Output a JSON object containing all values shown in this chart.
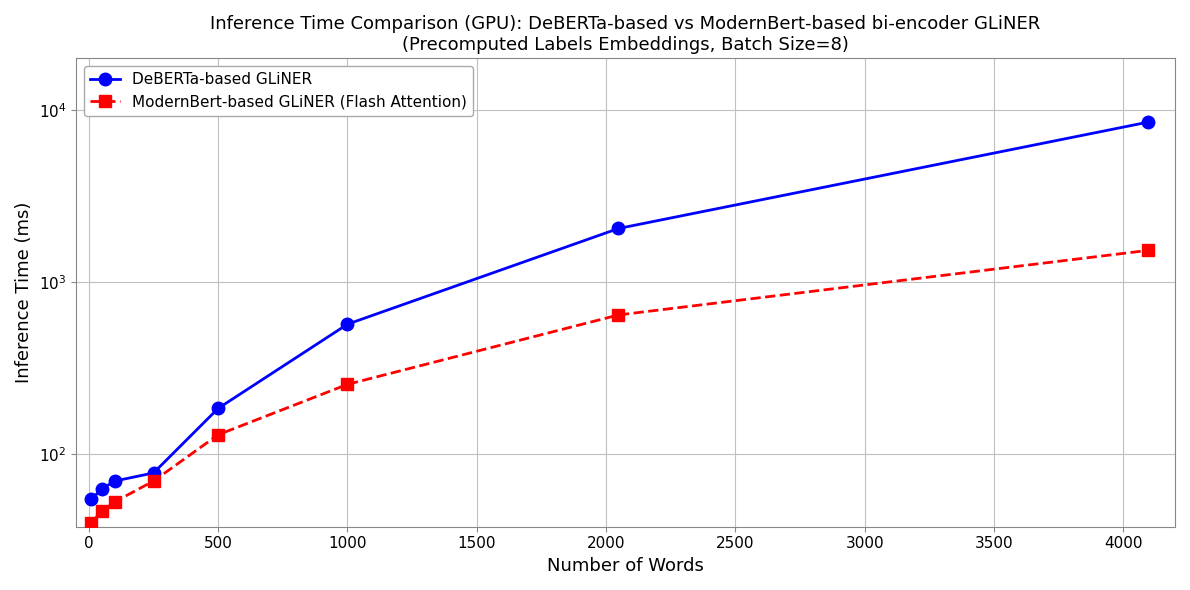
{
  "title_line1": "Inference Time Comparison (GPU): DeBERTa-based vs ModernBert-based bi-encoder GLiNER",
  "title_line2": "(Precomputed Labels Embeddings, Batch Size=8)",
  "xlabel": "Number of Words",
  "ylabel": "Inference Time (ms)",
  "deberta_x": [
    10,
    50,
    100,
    250,
    500,
    1000,
    2048,
    4096
  ],
  "deberta_y": [
    55,
    63,
    70,
    78,
    185,
    570,
    2050,
    8500
  ],
  "modernbert_x": [
    10,
    50,
    100,
    250,
    500,
    1000,
    2048,
    4096
  ],
  "modernbert_y": [
    40,
    47,
    53,
    70,
    130,
    255,
    645,
    1530
  ],
  "deberta_color": "#0000ff",
  "modernbert_color": "#ff0000",
  "deberta_label": "DeBERTa-based GLiNER",
  "modernbert_label": "ModernBert-based GLiNER (Flash Attention)",
  "background_color": "#ffffff",
  "grid_color": "#c0c0c0",
  "xlim": [
    -50,
    4200
  ],
  "ylim_bottom": 38,
  "ylim_top": 20000,
  "figsize": [
    11.9,
    5.9
  ],
  "dpi": 100,
  "xticks": [
    0,
    500,
    1000,
    1500,
    2000,
    2500,
    3000,
    3500,
    4000
  ]
}
